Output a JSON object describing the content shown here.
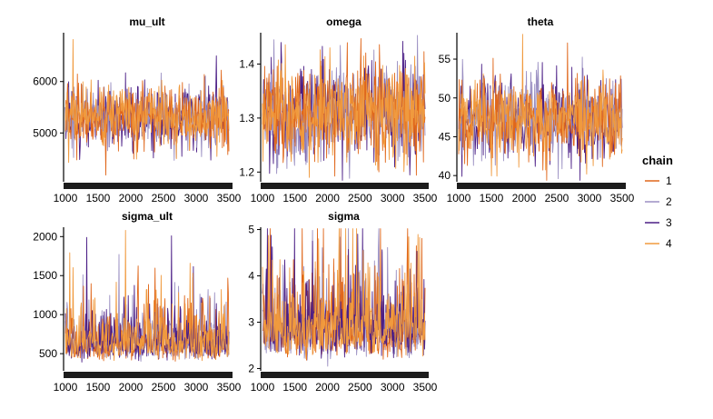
{
  "chart_data": {
    "type": "line",
    "kind": "MCMC trace plots",
    "legend": {
      "title": "chain",
      "placement": "right",
      "entries": [
        {
          "label": "1",
          "color": "#E0671B"
        },
        {
          "label": "2",
          "color": "#9A8FC2"
        },
        {
          "label": "3",
          "color": "#4B1E86"
        },
        {
          "label": "4",
          "color": "#F09A3E"
        }
      ]
    },
    "x_range": [
      1001,
      3500
    ],
    "x_ticks": [
      1000,
      1500,
      2000,
      2500,
      3000,
      3500
    ],
    "grid": false,
    "panels": [
      {
        "title": "mu_ult",
        "yticks": [
          5000,
          6000
        ],
        "ylim": [
          4050,
          6950
        ],
        "mean": 5300,
        "sd": 300,
        "draw_order": [
          3,
          2,
          1,
          4
        ],
        "extremes": [
          {
            "x": 1120,
            "y": 6820,
            "chain": 4
          },
          {
            "x": 1620,
            "y": 4180,
            "chain": 1
          },
          {
            "x": 3310,
            "y": 6500,
            "chain": 3
          }
        ]
      },
      {
        "title": "omega",
        "yticks": [
          1.2,
          1.3,
          1.4
        ],
        "ylim": [
          1.182,
          1.458
        ],
        "mean": 1.31,
        "sd": 0.045,
        "draw_order": [
          3,
          2,
          1,
          4
        ],
        "extremes": [
          {
            "x": 1180,
            "y": 1.445,
            "chain": 2
          },
          {
            "x": 3160,
            "y": 1.442,
            "chain": 3
          },
          {
            "x": 1720,
            "y": 1.19,
            "chain": 4
          }
        ]
      },
      {
        "title": "theta",
        "yticks": [
          40,
          45,
          50,
          55
        ],
        "ylim": [
          39.2,
          58.4
        ],
        "mean": 47.5,
        "sd": 2.6,
        "draw_order": [
          3,
          2,
          1,
          4
        ],
        "extremes": [
          {
            "x": 1980,
            "y": 58.2,
            "chain": 4
          },
          {
            "x": 1050,
            "y": 39.9,
            "chain": 3
          },
          {
            "x": 2520,
            "y": 39.6,
            "chain": 2
          }
        ]
      },
      {
        "title": "sigma_ult",
        "yticks": [
          500,
          1000,
          1500,
          2000
        ],
        "ylim": [
          280,
          2120
        ],
        "mean": 680,
        "sd": 260,
        "floor": 330,
        "draw_order": [
          2,
          1,
          3,
          4
        ],
        "extremes": [
          {
            "x": 1920,
            "y": 2080,
            "chain": 4
          },
          {
            "x": 1330,
            "y": 1990,
            "chain": 3
          },
          {
            "x": 2620,
            "y": 2010,
            "chain": 3
          }
        ]
      },
      {
        "title": "sigma",
        "yticks": [
          2,
          3,
          4,
          5
        ],
        "ylim": [
          1.95,
          5.05
        ],
        "mean": 2.95,
        "sd": 0.38,
        "floor": 2.05,
        "draw_order": [
          2,
          1,
          3,
          4
        ],
        "extremes": [
          {
            "x": 2460,
            "y": 4.9,
            "chain": 3
          },
          {
            "x": 1480,
            "y": 4.35,
            "chain": 1
          },
          {
            "x": 2000,
            "y": 2.05,
            "chain": 2
          }
        ]
      }
    ]
  }
}
